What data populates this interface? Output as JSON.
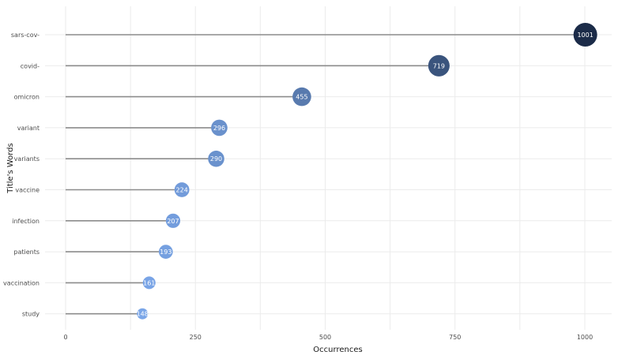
{
  "chart_data": {
    "type": "lollipop",
    "xlabel": "Occurrences",
    "ylabel": "Title's Words",
    "xlim": [
      0,
      1050
    ],
    "x_ticks": [
      0,
      250,
      500,
      750,
      1000
    ],
    "grid": true,
    "categories": [
      "sars-cov-",
      "covid-",
      "omicron",
      "variant",
      "variants",
      "vaccine",
      "infection",
      "patients",
      "vaccination",
      "study"
    ],
    "values": [
      1001,
      719,
      455,
      296,
      290,
      224,
      207,
      193,
      161,
      148
    ],
    "colors": {
      "low": "#7aa6e8",
      "high": "#1b2b48",
      "stem": "#8c8c8c",
      "grid": "#ebebeb"
    }
  }
}
